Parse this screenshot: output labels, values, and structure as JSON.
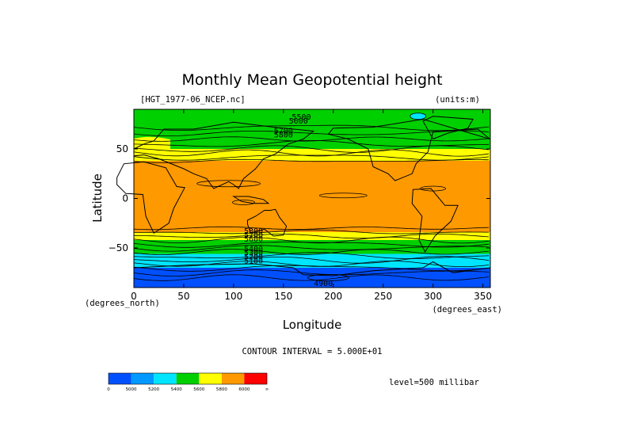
{
  "chart_data": {
    "type": "heatmap",
    "title": "Monthly Mean Geopotential height",
    "file_label": "[HGT_1977-06_NCEP.nc]",
    "units_label": "(units:m)",
    "xlabel": "Longitude",
    "ylabel": "Latitude",
    "x_unit_label": "(degrees_east)",
    "y_unit_label": "(degrees_north)",
    "xlim": [
      0,
      357.5
    ],
    "ylim": [
      -90,
      90
    ],
    "x_ticks": [
      "0",
      "50",
      "100",
      "150",
      "200",
      "250",
      "300",
      "350"
    ],
    "y_ticks": [
      "50",
      "0",
      "−50"
    ],
    "contour_interval_label": "CONTOUR INTERVAL = 5.000E+01",
    "level_label": "level=500 millibar",
    "colorbar": {
      "colors": [
        "#0050ff",
        "#0099ff",
        "#00e5ff",
        "#00d000",
        "#ffff00",
        "#ff9900",
        "#ff0000"
      ],
      "tick_labels": [
        "0",
        "5000",
        "5200",
        "5400",
        "5600",
        "5800",
        "6000",
        "∞"
      ]
    },
    "lat_bands": [
      {
        "lat_top": 90,
        "lat_bottom": 68,
        "color": "#00d000"
      },
      {
        "lat_top": 68,
        "lat_bottom": 50,
        "color": "#00d000"
      },
      {
        "lat_top": 50,
        "lat_bottom": 38,
        "color": "#ffff00"
      },
      {
        "lat_top": 38,
        "lat_bottom": -34,
        "color": "#ff9900"
      },
      {
        "lat_top": -34,
        "lat_bottom": -42,
        "color": "#ffff00"
      },
      {
        "lat_top": -42,
        "lat_bottom": -56,
        "color": "#00d000"
      },
      {
        "lat_top": -56,
        "lat_bottom": -70,
        "color": "#00e5ff"
      },
      {
        "lat_top": -70,
        "lat_bottom": -90,
        "color": "#0050ff"
      }
    ],
    "contour_labels": [
      "5500",
      "5600",
      "5700",
      "5800",
      "5800",
      "5700",
      "5600",
      "5400",
      "5300",
      "5200",
      "5100",
      "4900"
    ]
  }
}
